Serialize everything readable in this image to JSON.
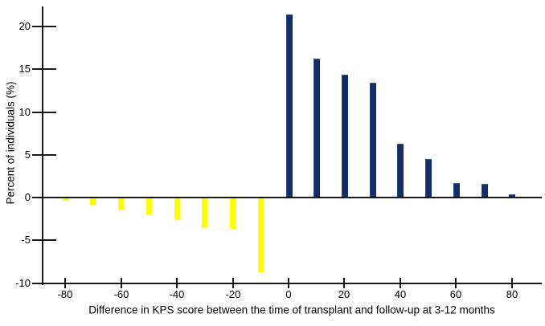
{
  "chart_data": {
    "type": "bar",
    "title": "",
    "xlabel": "Difference in KPS score between the time of transplant and follow-up at 3-12 months",
    "ylabel": "Percent of individuals (%)",
    "x": [
      -80,
      -70,
      -60,
      -50,
      -40,
      -30,
      -20,
      -10,
      0,
      10,
      20,
      30,
      40,
      50,
      60,
      70,
      80
    ],
    "values": [
      -0.4,
      -0.8,
      -1.4,
      -2.1,
      -2.6,
      -3.6,
      -3.7,
      -8.7,
      21.4,
      16.2,
      14.4,
      13.4,
      6.3,
      4.5,
      1.7,
      1.6,
      0.4
    ],
    "x_tick_labels": [
      "-80",
      "-60",
      "-40",
      "-20",
      "0",
      "20",
      "40",
      "60",
      "80"
    ],
    "y_tick_labels": [
      "20",
      "15",
      "10",
      "5",
      "0",
      "-5",
      "-10"
    ],
    "xlim": [
      -88,
      91
    ],
    "ylim": [
      -10,
      22.4
    ],
    "grid": false,
    "legend": null,
    "colors": {
      "positive_bar": "#142d66",
      "negative_bar": "#ffff00",
      "axis": "#1a1a1a",
      "background": "#ffffff"
    }
  }
}
